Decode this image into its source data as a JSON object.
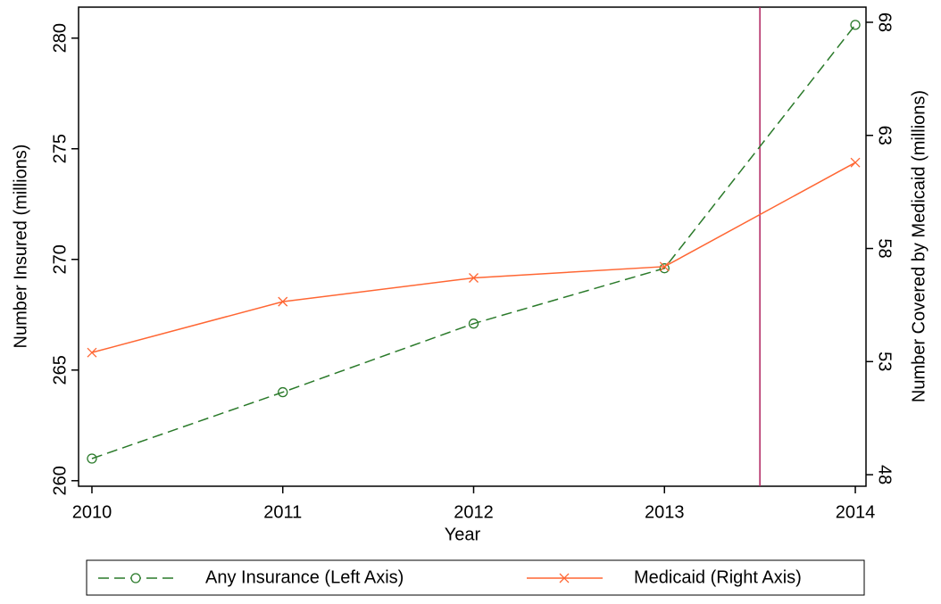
{
  "chart_data": {
    "type": "line",
    "x_label": "Year",
    "y_label": "Number Insured (millions)",
    "y2_label": "Number Covered by Medicaid (millions)",
    "x": [
      2010,
      2011,
      2012,
      2013,
      2014
    ],
    "xlim": [
      2009.93,
      2014.056
    ],
    "xticks": [
      2010,
      2011,
      2012,
      2013,
      2014
    ],
    "ylim": [
      259.75,
      281.4
    ],
    "yticks": [
      260,
      265,
      270,
      275,
      280
    ],
    "y2lim": [
      47.49,
      68.67
    ],
    "y2ticks": [
      48,
      53,
      58,
      63,
      68
    ],
    "vline": 2013.5,
    "vline_color": "#b0215e",
    "legend": "bottom",
    "series": [
      {
        "name": "Any Insurance (Left Axis)",
        "color": "#2a7a2a",
        "values": [
          261.0,
          264.0,
          267.1,
          269.6,
          280.6
        ]
      },
      {
        "name": "Medicaid (Right Axis)",
        "color": "#ff6633",
        "axis": "y2",
        "values": [
          53.4,
          55.65,
          56.7,
          57.2,
          61.8
        ]
      }
    ]
  }
}
